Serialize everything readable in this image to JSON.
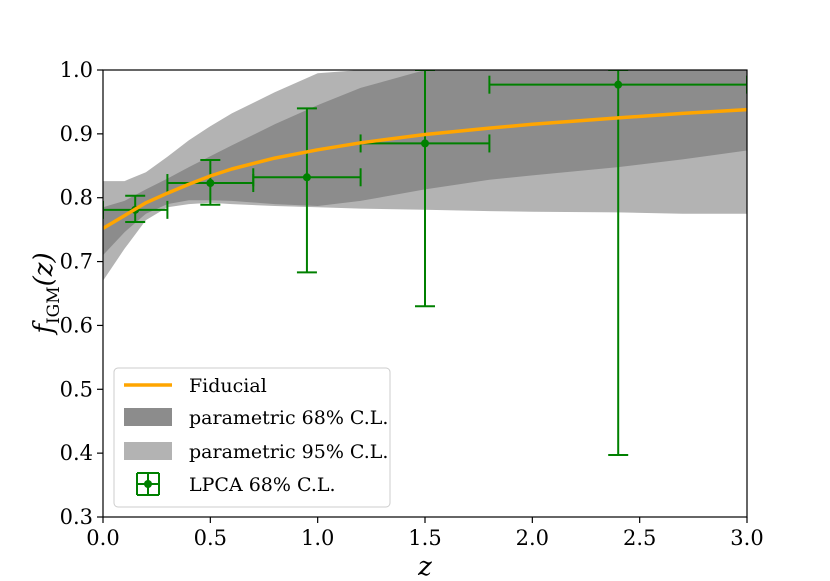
{
  "chart_data": {
    "type": "line",
    "xlabel": "z",
    "ylabel": {
      "main": "f",
      "sub": "IGM",
      "arg": "(z)"
    },
    "xlim": [
      0.0,
      3.0
    ],
    "ylim": [
      0.3,
      1.0
    ],
    "xticks": [
      "0.0",
      "0.5",
      "1.0",
      "1.5",
      "2.0",
      "2.5",
      "3.0"
    ],
    "yticks": [
      "0.3",
      "0.4",
      "0.5",
      "0.6",
      "0.7",
      "0.8",
      "0.9",
      "1.0"
    ],
    "grid": false,
    "legend_position": "lower-left",
    "series": [
      {
        "name": "Fiducial",
        "kind": "line",
        "color": "#ffa500",
        "x": [
          0.0,
          0.1,
          0.2,
          0.3,
          0.4,
          0.5,
          0.6,
          0.8,
          1.0,
          1.2,
          1.5,
          1.8,
          2.0,
          2.4,
          2.7,
          3.0
        ],
        "y": [
          0.752,
          0.772,
          0.792,
          0.807,
          0.821,
          0.834,
          0.845,
          0.862,
          0.875,
          0.886,
          0.899,
          0.909,
          0.915,
          0.925,
          0.932,
          0.938
        ]
      },
      {
        "name": "parametric 68% C.L.",
        "kind": "band",
        "color": "#8c8c8c",
        "x": [
          0.0,
          0.1,
          0.2,
          0.3,
          0.4,
          0.5,
          0.6,
          0.8,
          1.0,
          1.2,
          1.5,
          1.8,
          2.0,
          2.4,
          2.7,
          3.0
        ],
        "lower": [
          0.71,
          0.746,
          0.775,
          0.79,
          0.796,
          0.796,
          0.795,
          0.79,
          0.787,
          0.795,
          0.813,
          0.828,
          0.835,
          0.848,
          0.86,
          0.874
        ],
        "upper": [
          0.785,
          0.795,
          0.813,
          0.83,
          0.848,
          0.865,
          0.882,
          0.915,
          0.945,
          0.972,
          1.0,
          1.0,
          1.0,
          1.0,
          1.0,
          1.0
        ]
      },
      {
        "name": "parametric 95% C.L.",
        "kind": "band",
        "color": "#b3b3b3",
        "x": [
          0.0,
          0.1,
          0.2,
          0.3,
          0.4,
          0.5,
          0.6,
          0.8,
          1.0,
          1.2,
          1.5,
          1.8,
          2.0,
          2.4,
          2.7,
          3.0
        ],
        "lower": [
          0.67,
          0.72,
          0.765,
          0.785,
          0.79,
          0.792,
          0.79,
          0.787,
          0.785,
          0.783,
          0.781,
          0.779,
          0.778,
          0.777,
          0.775,
          0.775
        ],
        "upper": [
          0.826,
          0.826,
          0.84,
          0.864,
          0.89,
          0.912,
          0.932,
          0.965,
          0.995,
          1.0,
          1.0,
          1.0,
          1.0,
          1.0,
          1.0,
          1.0
        ]
      },
      {
        "name": "LPCA 68% C.L.",
        "kind": "errorbar",
        "color": "#008000",
        "points": [
          {
            "x": 0.15,
            "y": 0.781,
            "xlo": 0.0,
            "xhi": 0.3,
            "ylo": 0.762,
            "yhi": 0.803
          },
          {
            "x": 0.5,
            "y": 0.823,
            "xlo": 0.3,
            "xhi": 0.7,
            "ylo": 0.789,
            "yhi": 0.859
          },
          {
            "x": 0.95,
            "y": 0.832,
            "xlo": 0.7,
            "xhi": 1.2,
            "ylo": 0.683,
            "yhi": 0.94
          },
          {
            "x": 1.5,
            "y": 0.885,
            "xlo": 1.2,
            "xhi": 1.8,
            "ylo": 0.63,
            "yhi": 1.0
          },
          {
            "x": 2.4,
            "y": 0.977,
            "xlo": 1.8,
            "xhi": 3.0,
            "ylo": 0.397,
            "yhi": 1.0
          }
        ]
      }
    ]
  }
}
